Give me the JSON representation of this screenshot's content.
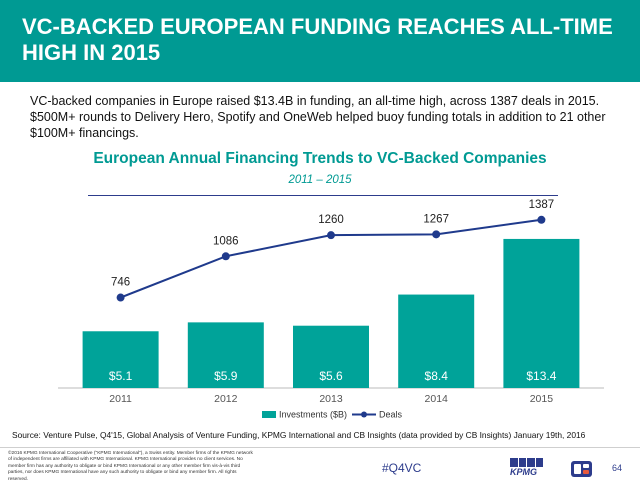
{
  "header": {
    "title": "VC-BACKED EUROPEAN FUNDING REACHES ALL-TIME HIGH IN 2015"
  },
  "intro_text": "VC-backed companies in Europe raised $13.4B in funding, an all-time high, across 1387 deals in 2015. $500M+ rounds to Delivery Hero, Spotify and OneWeb helped buoy funding totals in addition to 21 other $100M+ financings.",
  "chart_data": {
    "type": "bar",
    "title": "European Annual Financing Trends to VC-Backed Companies",
    "subtitle": "2011 – 2015",
    "categories": [
      "2011",
      "2012",
      "2013",
      "2014",
      "2015"
    ],
    "series": [
      {
        "name": "Investments ($B)",
        "type": "bar",
        "values": [
          5.1,
          5.9,
          5.6,
          8.4,
          13.4
        ],
        "labels": [
          "$5.1",
          "$5.9",
          "$5.6",
          "$8.4",
          "$13.4"
        ]
      },
      {
        "name": "Deals",
        "type": "line",
        "values": [
          746,
          1086,
          1260,
          1267,
          1387
        ],
        "labels": [
          "746",
          "1086",
          "1260",
          "1267",
          "1387"
        ]
      }
    ],
    "bar_ylim": [
      0,
      16.9
    ],
    "line_ylim": [
      0,
      1550
    ],
    "legend_position": "bottom",
    "grid": false,
    "colors": {
      "bars": "#00a399",
      "line": "#1f3a8c",
      "bar_label": "#ffffff",
      "axis": "#bbbbbb"
    }
  },
  "footer": {
    "source": "Source: Venture Pulse, Q4'15, Global Analysis of Venture Funding, KPMG International and CB Insights (data provided by CB Insights) January 19th, 2016",
    "legal": "©2016 KPMG International Cooperative (\"KPMG International\"), a Swiss entity. Member firms of the KPMG network of independent firms are affiliated with KPMG International. KPMG International provides no client services. No member firm has any authority to obligate or bind KPMG International or any other member firm vis-à-vis third parties, nor does KPMG International have any such authority to obligate or bind any member firm. All rights reserved.",
    "hashtag": "#Q4VC",
    "kpmg_logo": "KPMG",
    "cb_logo_icon": "cb-insights-logo-icon",
    "page_number": "64"
  },
  "colors": {
    "header_bg": "#009a93",
    "accent": "#009a93",
    "navy": "#2d3c8c"
  }
}
